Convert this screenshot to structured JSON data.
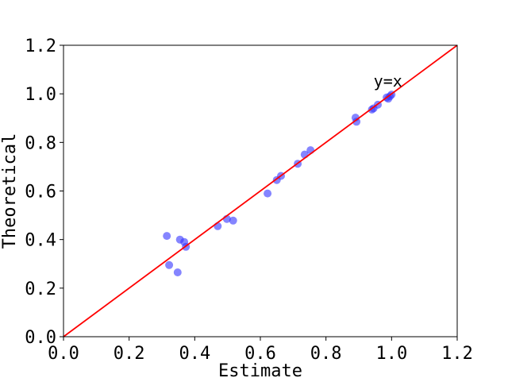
{
  "chart_data": {
    "type": "scatter",
    "title": "",
    "xlabel": "Estimate",
    "ylabel": "Theoretical",
    "xlim": [
      0.0,
      1.2
    ],
    "ylim": [
      0.0,
      1.2
    ],
    "xticks": [
      "0.0",
      "0.2",
      "0.4",
      "0.6",
      "0.8",
      "1.0",
      "1.2"
    ],
    "yticks": [
      "0.0",
      "0.2",
      "0.4",
      "0.6",
      "0.8",
      "1.0",
      "1.2"
    ],
    "grid": false,
    "legend": "none",
    "series": [
      {
        "type": "scatter",
        "color": "#3333ff",
        "points": [
          [
            0.315,
            0.415
          ],
          [
            0.322,
            0.295
          ],
          [
            0.348,
            0.265
          ],
          [
            0.355,
            0.4
          ],
          [
            0.368,
            0.39
          ],
          [
            0.373,
            0.37
          ],
          [
            0.47,
            0.455
          ],
          [
            0.498,
            0.485
          ],
          [
            0.517,
            0.478
          ],
          [
            0.622,
            0.59
          ],
          [
            0.65,
            0.645
          ],
          [
            0.663,
            0.662
          ],
          [
            0.714,
            0.712
          ],
          [
            0.735,
            0.75
          ],
          [
            0.753,
            0.768
          ],
          [
            0.89,
            0.902
          ],
          [
            0.893,
            0.885
          ],
          [
            0.94,
            0.935
          ],
          [
            0.945,
            0.94
          ],
          [
            0.958,
            0.955
          ],
          [
            0.985,
            0.985
          ],
          [
            0.99,
            0.98
          ],
          [
            0.995,
            0.99
          ],
          [
            1.0,
            0.997
          ]
        ]
      },
      {
        "type": "line",
        "color": "#ff0000",
        "points": [
          [
            0.0,
            0.0
          ],
          [
            1.2,
            1.2
          ]
        ]
      }
    ],
    "annotations": [
      {
        "text": "y=x",
        "x": 0.95,
        "y": 1.05
      }
    ]
  }
}
